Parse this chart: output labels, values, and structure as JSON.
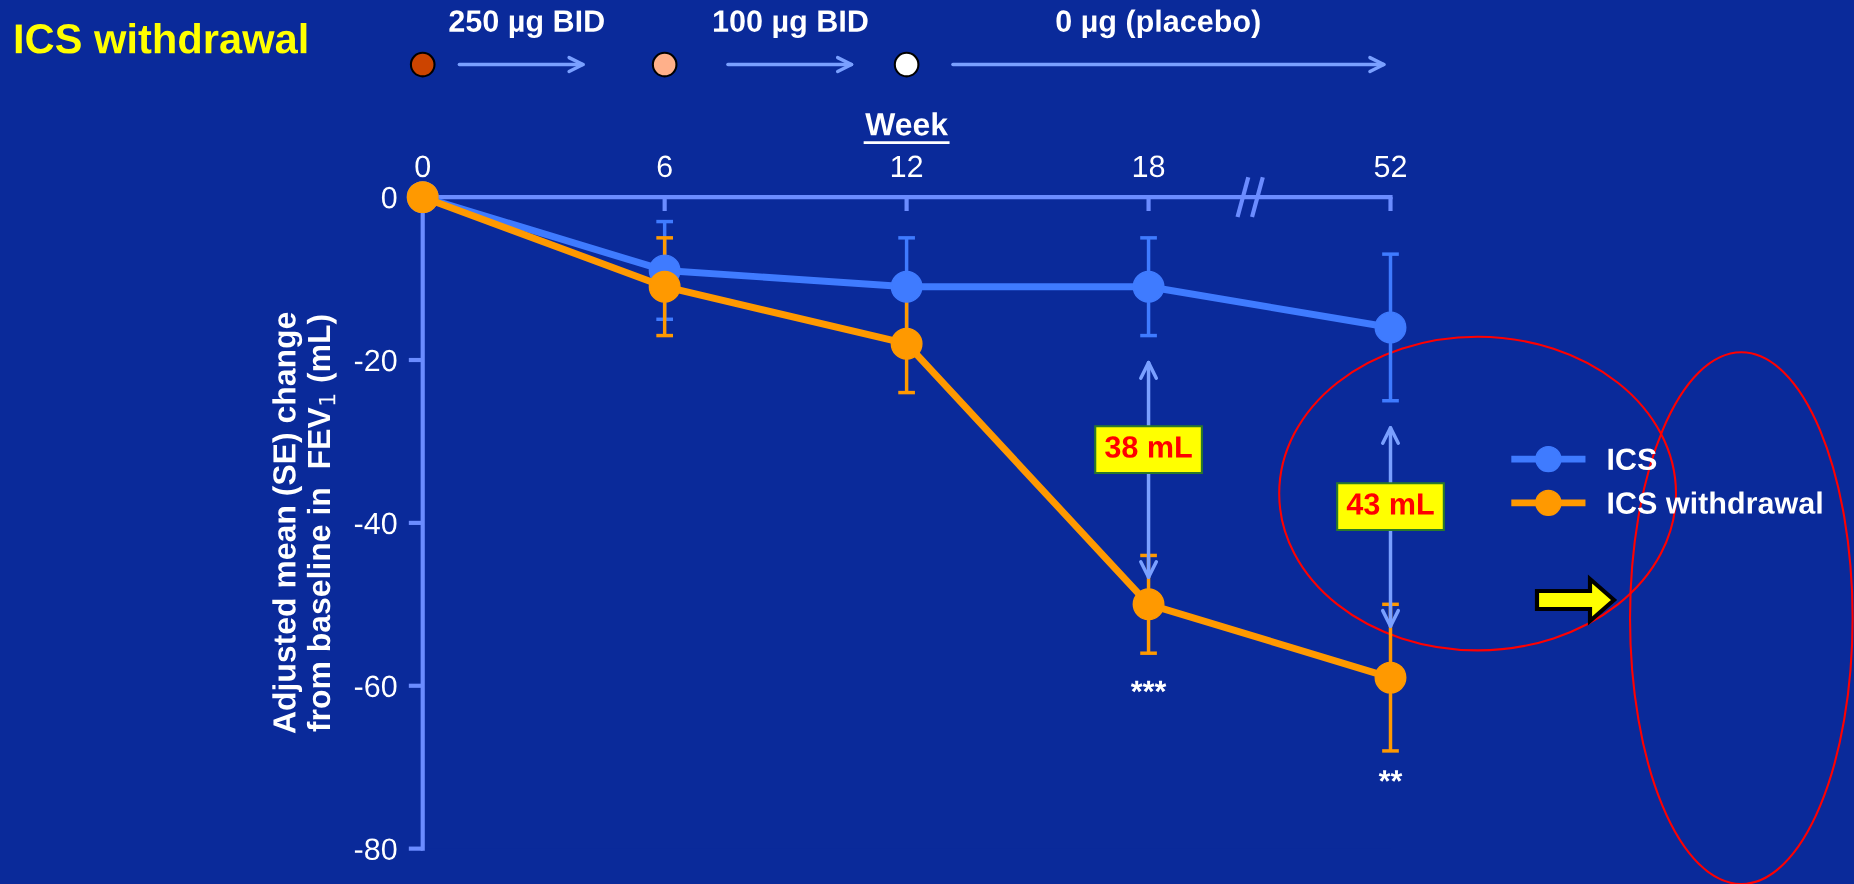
{
  "chart_data": {
    "type": "line",
    "title": "ICS withdrawal",
    "xlabel": "Week",
    "ylabel": "Adjusted mean (SE) change\nfrom baseline in  FEV$_{1}$ (mL)",
    "categories": [
      "0",
      "6",
      "12",
      "18",
      "52"
    ],
    "series": [
      {
        "name": "ICS",
        "color": "#3f7bff",
        "values": [
          0,
          -9,
          -11,
          -11,
          -16
        ],
        "errors": [
          null,
          6,
          6,
          6,
          9
        ]
      },
      {
        "name": "ICS withdrawal",
        "color": "#ff9900",
        "values": [
          0,
          -11,
          -18,
          -50,
          -59
        ],
        "errors": [
          null,
          6,
          6,
          6,
          9
        ]
      }
    ],
    "ylim": [
      -80,
      0
    ],
    "yticks": [
      -80,
      -60,
      -40,
      -20,
      0
    ],
    "annotations": [
      "250 µg BID",
      "100 µg BID",
      "0 µg (placebo)",
      "38 mL",
      "43 mL",
      "***",
      "**"
    ],
    "legend": "right",
    "marker": "circle",
    "line_style": "solid",
    "grid": false
  }
}
